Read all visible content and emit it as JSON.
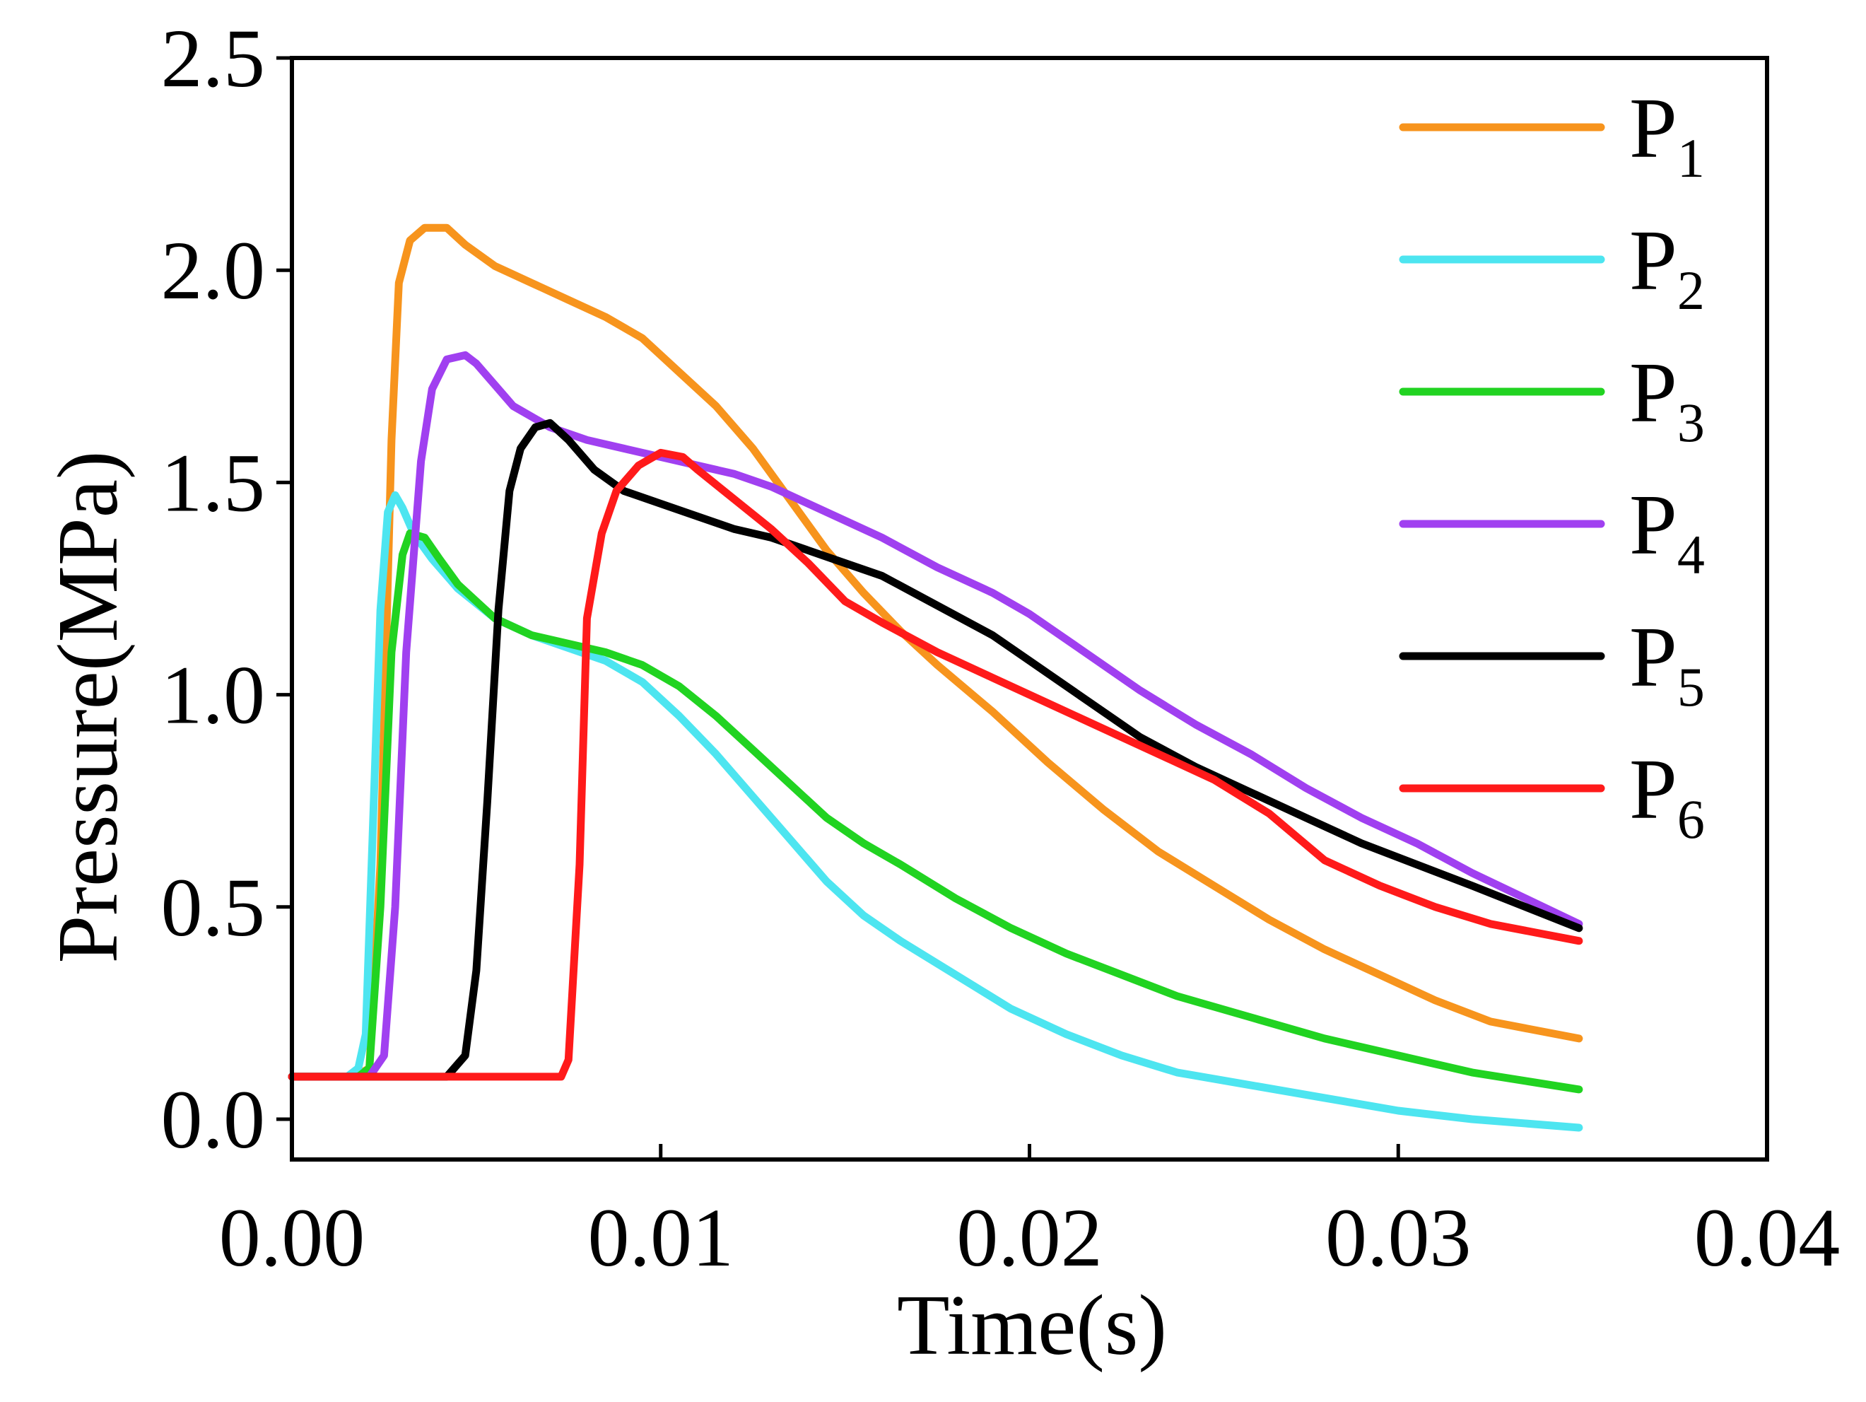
{
  "chart_data": {
    "type": "line",
    "title": "",
    "xlabel": "Time(s)",
    "ylabel": "Pressure(MPa)",
    "xlim": [
      0.0,
      0.04
    ],
    "ylim": [
      -0.095,
      2.5
    ],
    "x_ticks": [
      0.0,
      0.01,
      0.02,
      0.03,
      0.04
    ],
    "x_tick_labels": [
      "0.00",
      "0.01",
      "0.02",
      "0.03",
      "0.04"
    ],
    "y_ticks": [
      0.0,
      0.5,
      1.0,
      1.5,
      2.0,
      2.5
    ],
    "y_tick_labels": [
      "0.0",
      "0.5",
      "1.0",
      "1.5",
      "2.0",
      "2.5"
    ],
    "grid": false,
    "legend_position": "top-right",
    "series": [
      {
        "name": "P",
        "subscript": "1",
        "color": "#F7941D",
        "x": [
          0,
          0.0017,
          0.0021,
          0.0024,
          0.0027,
          0.0029,
          0.0032,
          0.0036,
          0.0042,
          0.0047,
          0.0055,
          0.0065,
          0.0075,
          0.0085,
          0.0095,
          0.0105,
          0.0115,
          0.0125,
          0.0135,
          0.0145,
          0.0155,
          0.0165,
          0.0175,
          0.019,
          0.0205,
          0.022,
          0.0235,
          0.025,
          0.0265,
          0.028,
          0.0295,
          0.031,
          0.0325,
          0.0349
        ],
        "y": [
          0.1,
          0.1,
          0.12,
          0.6,
          1.6,
          1.97,
          2.07,
          2.1,
          2.1,
          2.06,
          2.01,
          1.97,
          1.93,
          1.89,
          1.84,
          1.76,
          1.68,
          1.58,
          1.46,
          1.34,
          1.24,
          1.15,
          1.07,
          0.96,
          0.84,
          0.73,
          0.63,
          0.55,
          0.47,
          0.4,
          0.34,
          0.28,
          0.23,
          0.19
        ]
      },
      {
        "name": "P",
        "subscript": "2",
        "color": "#4DE5F0",
        "x": [
          0,
          0.0015,
          0.0018,
          0.002,
          0.0022,
          0.0024,
          0.0026,
          0.0028,
          0.003,
          0.0033,
          0.0038,
          0.0045,
          0.0055,
          0.0065,
          0.0075,
          0.0085,
          0.0095,
          0.0105,
          0.0115,
          0.0125,
          0.0135,
          0.0145,
          0.0155,
          0.0165,
          0.018,
          0.0195,
          0.021,
          0.0225,
          0.024,
          0.026,
          0.028,
          0.03,
          0.032,
          0.0349
        ],
        "y": [
          0.1,
          0.1,
          0.12,
          0.2,
          0.7,
          1.2,
          1.43,
          1.47,
          1.44,
          1.38,
          1.32,
          1.25,
          1.18,
          1.14,
          1.11,
          1.08,
          1.03,
          0.95,
          0.86,
          0.76,
          0.66,
          0.56,
          0.48,
          0.42,
          0.34,
          0.26,
          0.2,
          0.15,
          0.11,
          0.08,
          0.05,
          0.02,
          0.0,
          -0.02
        ]
      },
      {
        "name": "P",
        "subscript": "3",
        "color": "#21D321",
        "x": [
          0,
          0.0018,
          0.0021,
          0.0024,
          0.0027,
          0.003,
          0.0032,
          0.0036,
          0.004,
          0.0045,
          0.0055,
          0.0065,
          0.0075,
          0.0085,
          0.0095,
          0.0105,
          0.0115,
          0.0125,
          0.0135,
          0.0145,
          0.0155,
          0.0165,
          0.018,
          0.0195,
          0.021,
          0.0225,
          0.024,
          0.026,
          0.028,
          0.03,
          0.032,
          0.0349
        ],
        "y": [
          0.1,
          0.1,
          0.12,
          0.5,
          1.1,
          1.33,
          1.38,
          1.37,
          1.32,
          1.26,
          1.18,
          1.14,
          1.12,
          1.1,
          1.07,
          1.02,
          0.95,
          0.87,
          0.79,
          0.71,
          0.65,
          0.6,
          0.52,
          0.45,
          0.39,
          0.34,
          0.29,
          0.24,
          0.19,
          0.15,
          0.11,
          0.07
        ]
      },
      {
        "name": "P",
        "subscript": "4",
        "color": "#A040F0",
        "x": [
          0,
          0.0021,
          0.0025,
          0.0028,
          0.0031,
          0.0035,
          0.0038,
          0.0042,
          0.0047,
          0.005,
          0.0055,
          0.006,
          0.007,
          0.008,
          0.009,
          0.01,
          0.011,
          0.012,
          0.013,
          0.014,
          0.015,
          0.016,
          0.0175,
          0.019,
          0.02,
          0.0215,
          0.023,
          0.0245,
          0.026,
          0.0275,
          0.029,
          0.0305,
          0.032,
          0.0349
        ],
        "y": [
          0.1,
          0.1,
          0.15,
          0.5,
          1.1,
          1.55,
          1.72,
          1.79,
          1.8,
          1.78,
          1.73,
          1.68,
          1.63,
          1.6,
          1.58,
          1.56,
          1.54,
          1.52,
          1.49,
          1.45,
          1.41,
          1.37,
          1.3,
          1.24,
          1.19,
          1.1,
          1.01,
          0.93,
          0.86,
          0.78,
          0.71,
          0.65,
          0.58,
          0.46
        ]
      },
      {
        "name": "P",
        "subscript": "5",
        "color": "#000000",
        "x": [
          0,
          0.0042,
          0.0047,
          0.005,
          0.0053,
          0.0056,
          0.0059,
          0.0062,
          0.0066,
          0.007,
          0.0075,
          0.0082,
          0.009,
          0.01,
          0.011,
          0.012,
          0.013,
          0.014,
          0.015,
          0.016,
          0.0175,
          0.019,
          0.02,
          0.0215,
          0.023,
          0.0245,
          0.026,
          0.0275,
          0.029,
          0.0305,
          0.032,
          0.0349
        ],
        "y": [
          0.1,
          0.1,
          0.15,
          0.35,
          0.75,
          1.2,
          1.48,
          1.58,
          1.63,
          1.64,
          1.6,
          1.53,
          1.48,
          1.45,
          1.42,
          1.39,
          1.37,
          1.34,
          1.31,
          1.28,
          1.21,
          1.14,
          1.08,
          0.99,
          0.9,
          0.83,
          0.77,
          0.71,
          0.65,
          0.6,
          0.55,
          0.45
        ]
      },
      {
        "name": "P",
        "subscript": "6",
        "color": "#FF1A1A",
        "x": [
          0,
          0.0073,
          0.0075,
          0.0078,
          0.008,
          0.0084,
          0.0088,
          0.0094,
          0.01,
          0.0106,
          0.011,
          0.012,
          0.013,
          0.014,
          0.015,
          0.016,
          0.0175,
          0.019,
          0.0205,
          0.022,
          0.0235,
          0.025,
          0.0265,
          0.028,
          0.0295,
          0.031,
          0.0325,
          0.0349
        ],
        "y": [
          0.1,
          0.1,
          0.14,
          0.6,
          1.18,
          1.38,
          1.48,
          1.54,
          1.57,
          1.56,
          1.53,
          1.46,
          1.39,
          1.31,
          1.22,
          1.17,
          1.1,
          1.04,
          0.98,
          0.92,
          0.86,
          0.8,
          0.72,
          0.61,
          0.55,
          0.5,
          0.46,
          0.42
        ]
      }
    ]
  }
}
